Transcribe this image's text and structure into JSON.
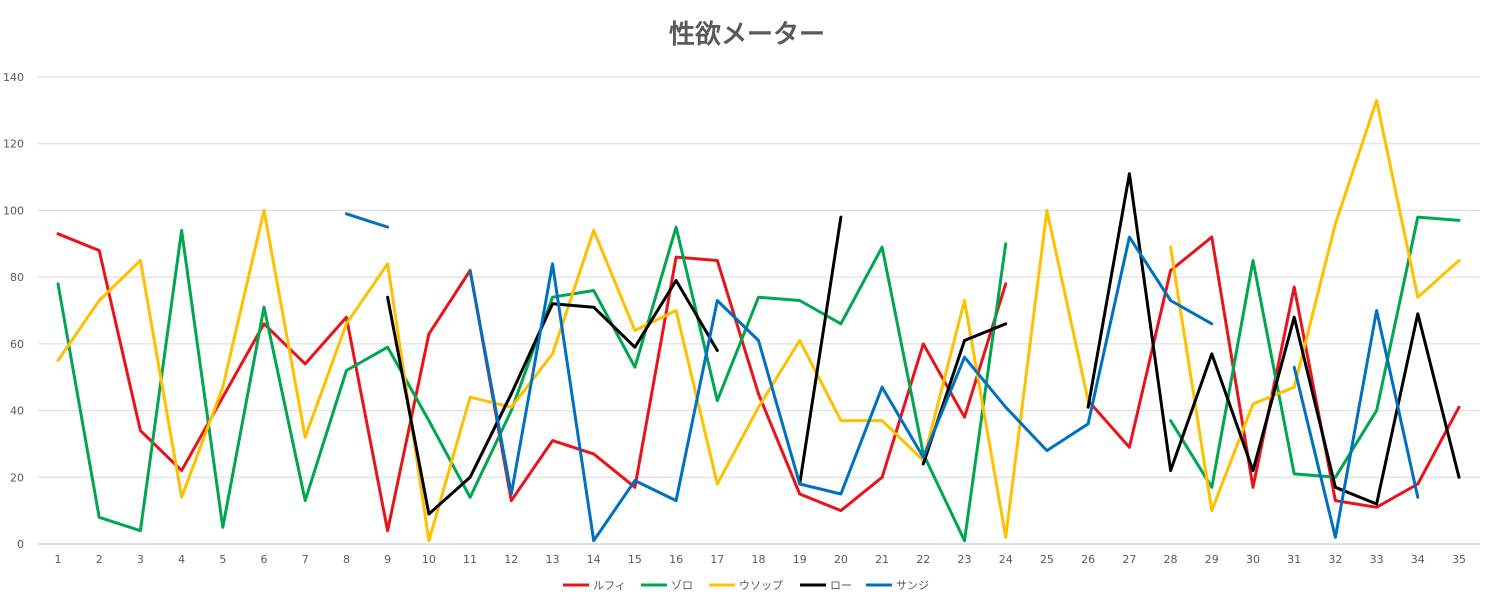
{
  "chart_data": {
    "type": "line",
    "title": "性欲メーター",
    "xlabel": "",
    "ylabel": "",
    "ylim": [
      0,
      140
    ],
    "yticks": [
      0,
      20,
      40,
      60,
      80,
      100,
      120,
      140
    ],
    "grid": true,
    "legend_position": "bottom",
    "categories": [
      "1",
      "2",
      "3",
      "4",
      "5",
      "6",
      "7",
      "8",
      "9",
      "10",
      "11",
      "12",
      "13",
      "14",
      "15",
      "16",
      "17",
      "18",
      "19",
      "20",
      "21",
      "22",
      "23",
      "24",
      "25",
      "26",
      "27",
      "28",
      "29",
      "30",
      "31",
      "32",
      "33",
      "34",
      "35"
    ],
    "series": [
      {
        "name": "ルフィ",
        "color": "#e8141b",
        "values": [
          93,
          88,
          34,
          22,
          44,
          66,
          54,
          68,
          4,
          63,
          82,
          13,
          31,
          27,
          17,
          86,
          85,
          45,
          15,
          10,
          20,
          60,
          38,
          78,
          null,
          43,
          29,
          82,
          92,
          17,
          77,
          13,
          11,
          18,
          41
        ]
      },
      {
        "name": "ゾロ",
        "color": "#00a650",
        "values": [
          78,
          8,
          4,
          94,
          5,
          71,
          13,
          52,
          59,
          37,
          14,
          40,
          74,
          76,
          53,
          95,
          43,
          74,
          73,
          66,
          89,
          27,
          1,
          90,
          null,
          null,
          null,
          37,
          17,
          85,
          21,
          20,
          40,
          98,
          97
        ]
      },
      {
        "name": "ウソップ",
        "color": "#ffc000",
        "values": [
          55,
          73,
          85,
          14,
          47,
          100,
          32,
          66,
          84,
          1,
          44,
          41,
          57,
          94,
          64,
          70,
          18,
          41,
          61,
          37,
          37,
          25,
          73,
          2,
          100,
          43,
          null,
          89,
          10,
          42,
          47,
          96,
          133,
          74,
          85
        ]
      },
      {
        "name": "ロー",
        "color": "#000000",
        "values": [
          null,
          null,
          null,
          null,
          null,
          null,
          null,
          null,
          74,
          9,
          20,
          45,
          72,
          71,
          59,
          79,
          58,
          null,
          18,
          98,
          null,
          24,
          61,
          66,
          null,
          41,
          111,
          22,
          57,
          22,
          68,
          17,
          12,
          69,
          20
        ]
      },
      {
        "name": "サンジ",
        "color": "#0070c0",
        "values": [
          null,
          null,
          null,
          null,
          null,
          null,
          null,
          99,
          95,
          null,
          82,
          15,
          84,
          1,
          19,
          13,
          73,
          61,
          18,
          15,
          47,
          26,
          56,
          41,
          28,
          36,
          92,
          73,
          66,
          null,
          53,
          2,
          70,
          14,
          null
        ]
      }
    ]
  }
}
